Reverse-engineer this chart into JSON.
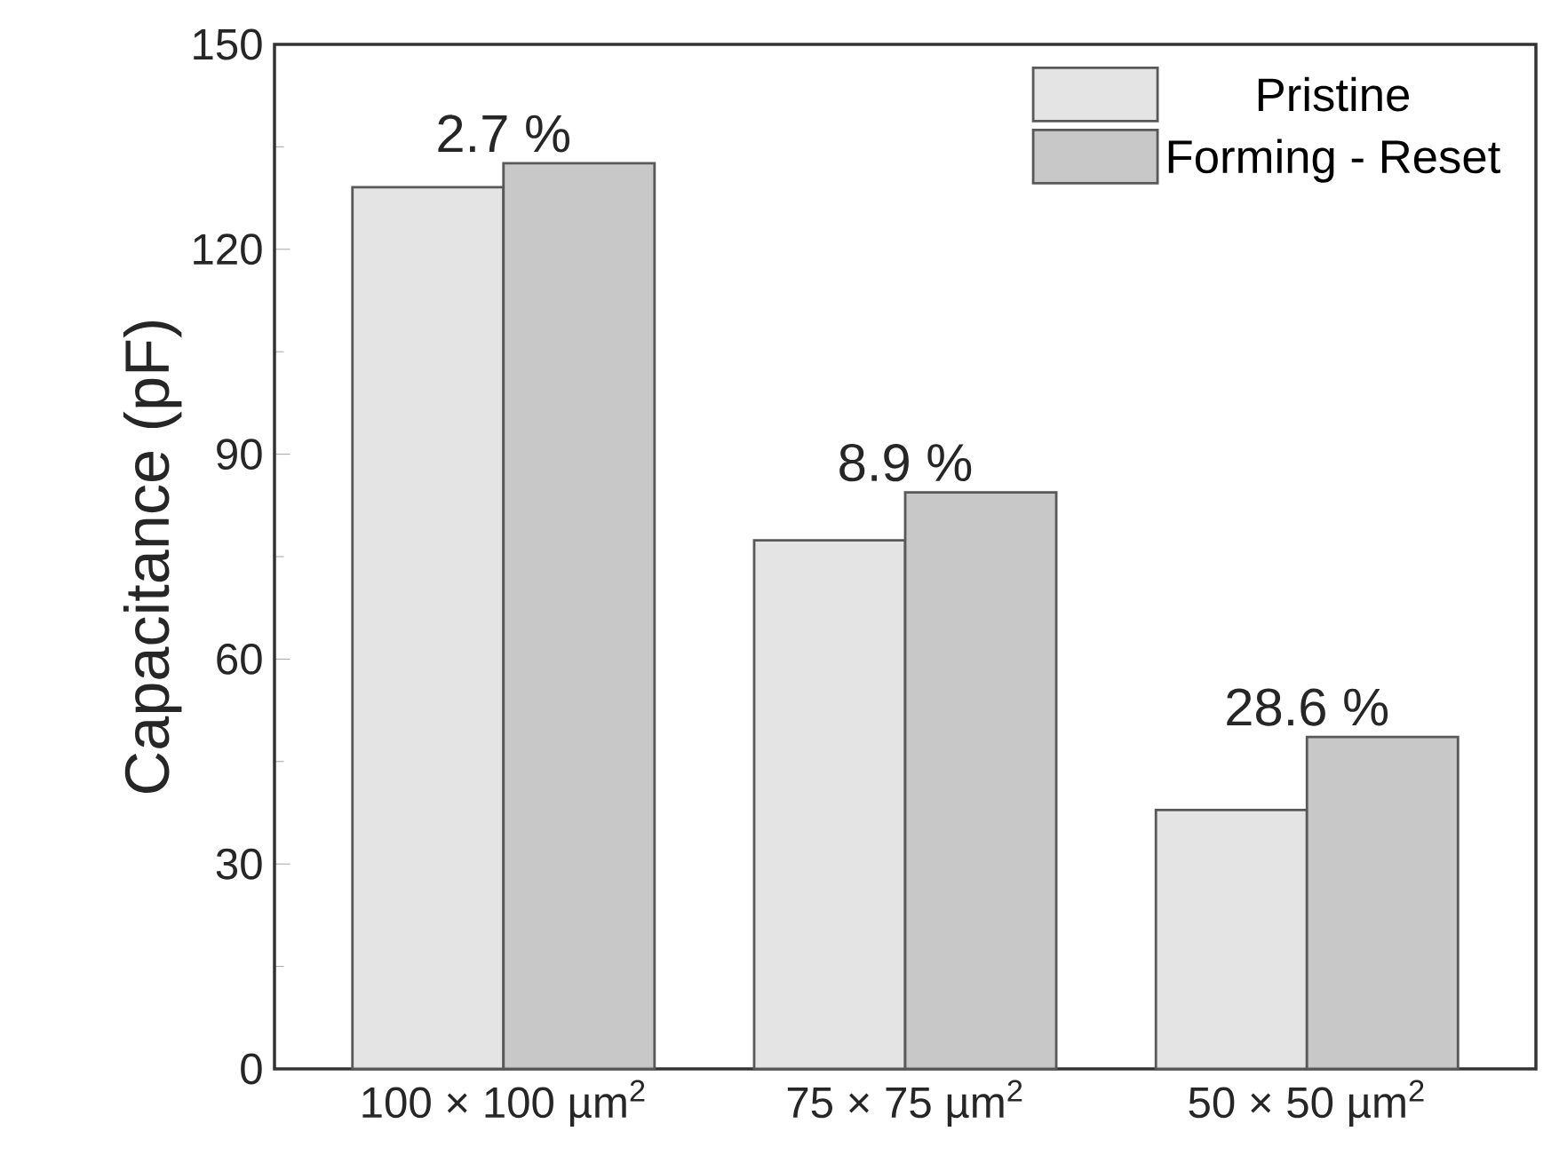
{
  "chart_data": {
    "type": "bar",
    "ylabel": "Capacitance (pF)",
    "categories": [
      "100 × 100 µm$^{2}$",
      "75 × 75 µm$^{2}$",
      "50 × 50 µm$^{2}$"
    ],
    "series": [
      {
        "name": "Pristine",
        "color": "#e4e4e4",
        "values": [
          129.1,
          77.4,
          37.9
        ]
      },
      {
        "name": "Forming - Reset",
        "color": "#c8c8c8",
        "values": [
          132.6,
          84.4,
          48.6
        ]
      }
    ],
    "ylim": [
      0,
      150
    ],
    "yticks": [
      0,
      30,
      60,
      90,
      120,
      150
    ],
    "grid": false,
    "legend": "top right",
    "annotations": [
      {
        "text": "2.7 %",
        "x": "100 × 100 µm$^{2}$",
        "y": 132.6
      },
      {
        "text": "8.9 %",
        "x": "75 × 75 µm$^{2}$",
        "y": 84.4
      },
      {
        "text": "28.6 %",
        "x": "50 × 50 µm$^{2}$",
        "y": 48.6
      }
    ]
  }
}
